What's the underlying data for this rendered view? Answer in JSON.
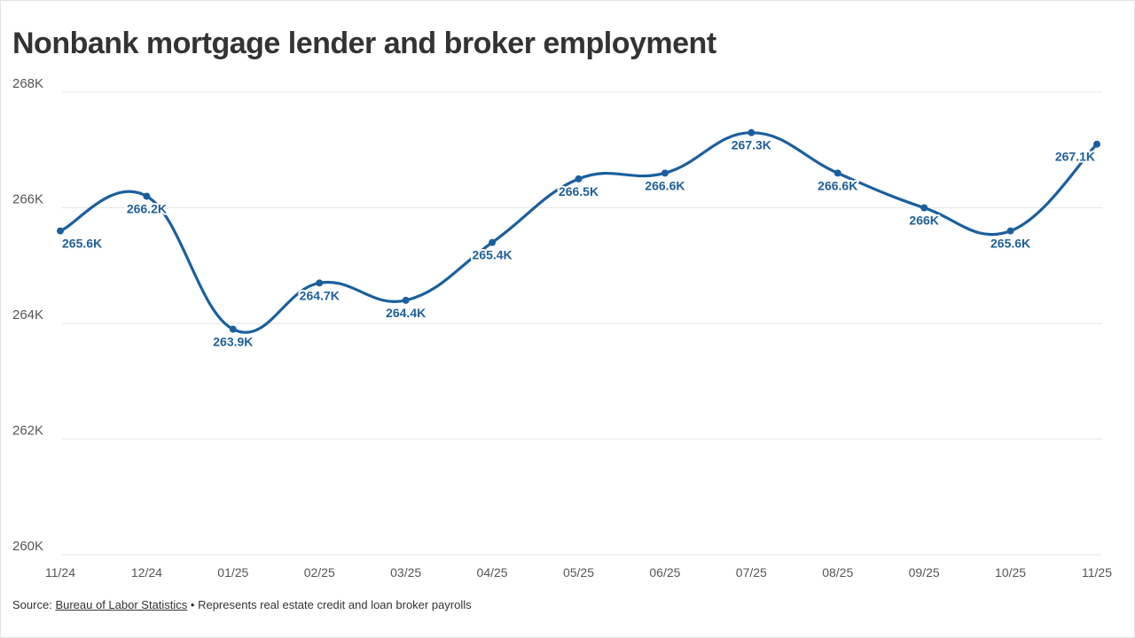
{
  "title": "Nonbank mortgage lender and broker employment",
  "footer": {
    "source_prefix": "Source:",
    "source_link": "Bureau of Labor Statistics",
    "note": "• Represents real estate credit and loan broker payrolls"
  },
  "colors": {
    "line": "#1a5f9e",
    "label": "#1f5f99",
    "grid": "#e6e6e6"
  },
  "chart_data": {
    "type": "line",
    "title": "Nonbank mortgage lender and broker employment",
    "xlabel": "",
    "ylabel": "",
    "categories": [
      "11/24",
      "12/24",
      "01/25",
      "02/25",
      "03/25",
      "04/25",
      "05/25",
      "06/25",
      "07/25",
      "08/25",
      "09/25",
      "10/25",
      "11/25"
    ],
    "values": [
      265.6,
      266.2,
      263.9,
      264.7,
      264.4,
      265.4,
      266.5,
      266.6,
      267.3,
      266.6,
      266.0,
      265.6,
      267.1
    ],
    "data_labels": [
      "265.6K",
      "266.2K",
      "263.9K",
      "264.7K",
      "264.4K",
      "265.4K",
      "266.5K",
      "266.6K",
      "267.3K",
      "266.6K",
      "266K",
      "265.6K",
      "267.1K"
    ],
    "yticks": [
      260,
      262,
      264,
      266,
      268
    ],
    "ytick_labels": [
      "260K",
      "262K",
      "264K",
      "266K",
      "268K"
    ],
    "ylim": [
      260,
      268
    ],
    "grid": true,
    "legend": "none"
  }
}
